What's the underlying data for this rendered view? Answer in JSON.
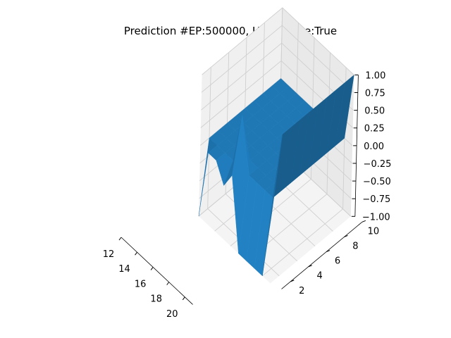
{
  "chart_data": {
    "type": "surface",
    "title": "Prediction #EP:500000, Usable Ace:True",
    "xlabel": "",
    "ylabel": "",
    "zlabel": "",
    "x_ticks": [
      "12",
      "14",
      "16",
      "18",
      "20"
    ],
    "y_ticks": [
      "2",
      "4",
      "6",
      "8",
      "10"
    ],
    "z_ticks": [
      "1.00",
      "0.75",
      "0.50",
      "0.25",
      "0.00",
      "−0.25",
      "−0.50",
      "−0.75",
      "−1.00"
    ],
    "xlim": [
      12,
      21
    ],
    "ylim": [
      1,
      10
    ],
    "zlim": [
      -1,
      1
    ],
    "surface_color": "#1f77b4",
    "x": [
      12,
      13,
      14,
      15,
      16,
      17,
      18,
      19,
      20,
      21
    ],
    "y": [
      1,
      2,
      3,
      4,
      5,
      6,
      7,
      8,
      9,
      10
    ],
    "z_rows_by_x": [
      [
        -1.0,
        0,
        0,
        0,
        0,
        0,
        0,
        0,
        0,
        0
      ],
      [
        0,
        0,
        0,
        0,
        0,
        0,
        0,
        0,
        0,
        0
      ],
      [
        0,
        0,
        0,
        0,
        0,
        0,
        0,
        0,
        0,
        0
      ],
      [
        -0.25,
        0,
        0,
        0,
        0,
        0,
        0,
        0,
        0,
        0
      ],
      [
        0,
        0.75,
        0,
        0,
        0,
        0,
        0,
        0,
        0,
        0
      ],
      [
        -1.0,
        0,
        0,
        0,
        0,
        0,
        0,
        0,
        0,
        0
      ],
      [
        -1.0,
        0,
        0,
        0,
        0,
        0,
        0,
        0,
        0,
        0
      ],
      [
        -1.0,
        0,
        0,
        0,
        0,
        0,
        0,
        0,
        0,
        0
      ],
      [
        -1.0,
        0,
        0,
        0,
        0,
        0,
        0,
        0,
        0,
        0
      ],
      [
        0,
        1.0,
        1.0,
        1.0,
        1.0,
        1.0,
        1.0,
        1.0,
        1.0,
        1.0
      ]
    ],
    "grid": true
  }
}
